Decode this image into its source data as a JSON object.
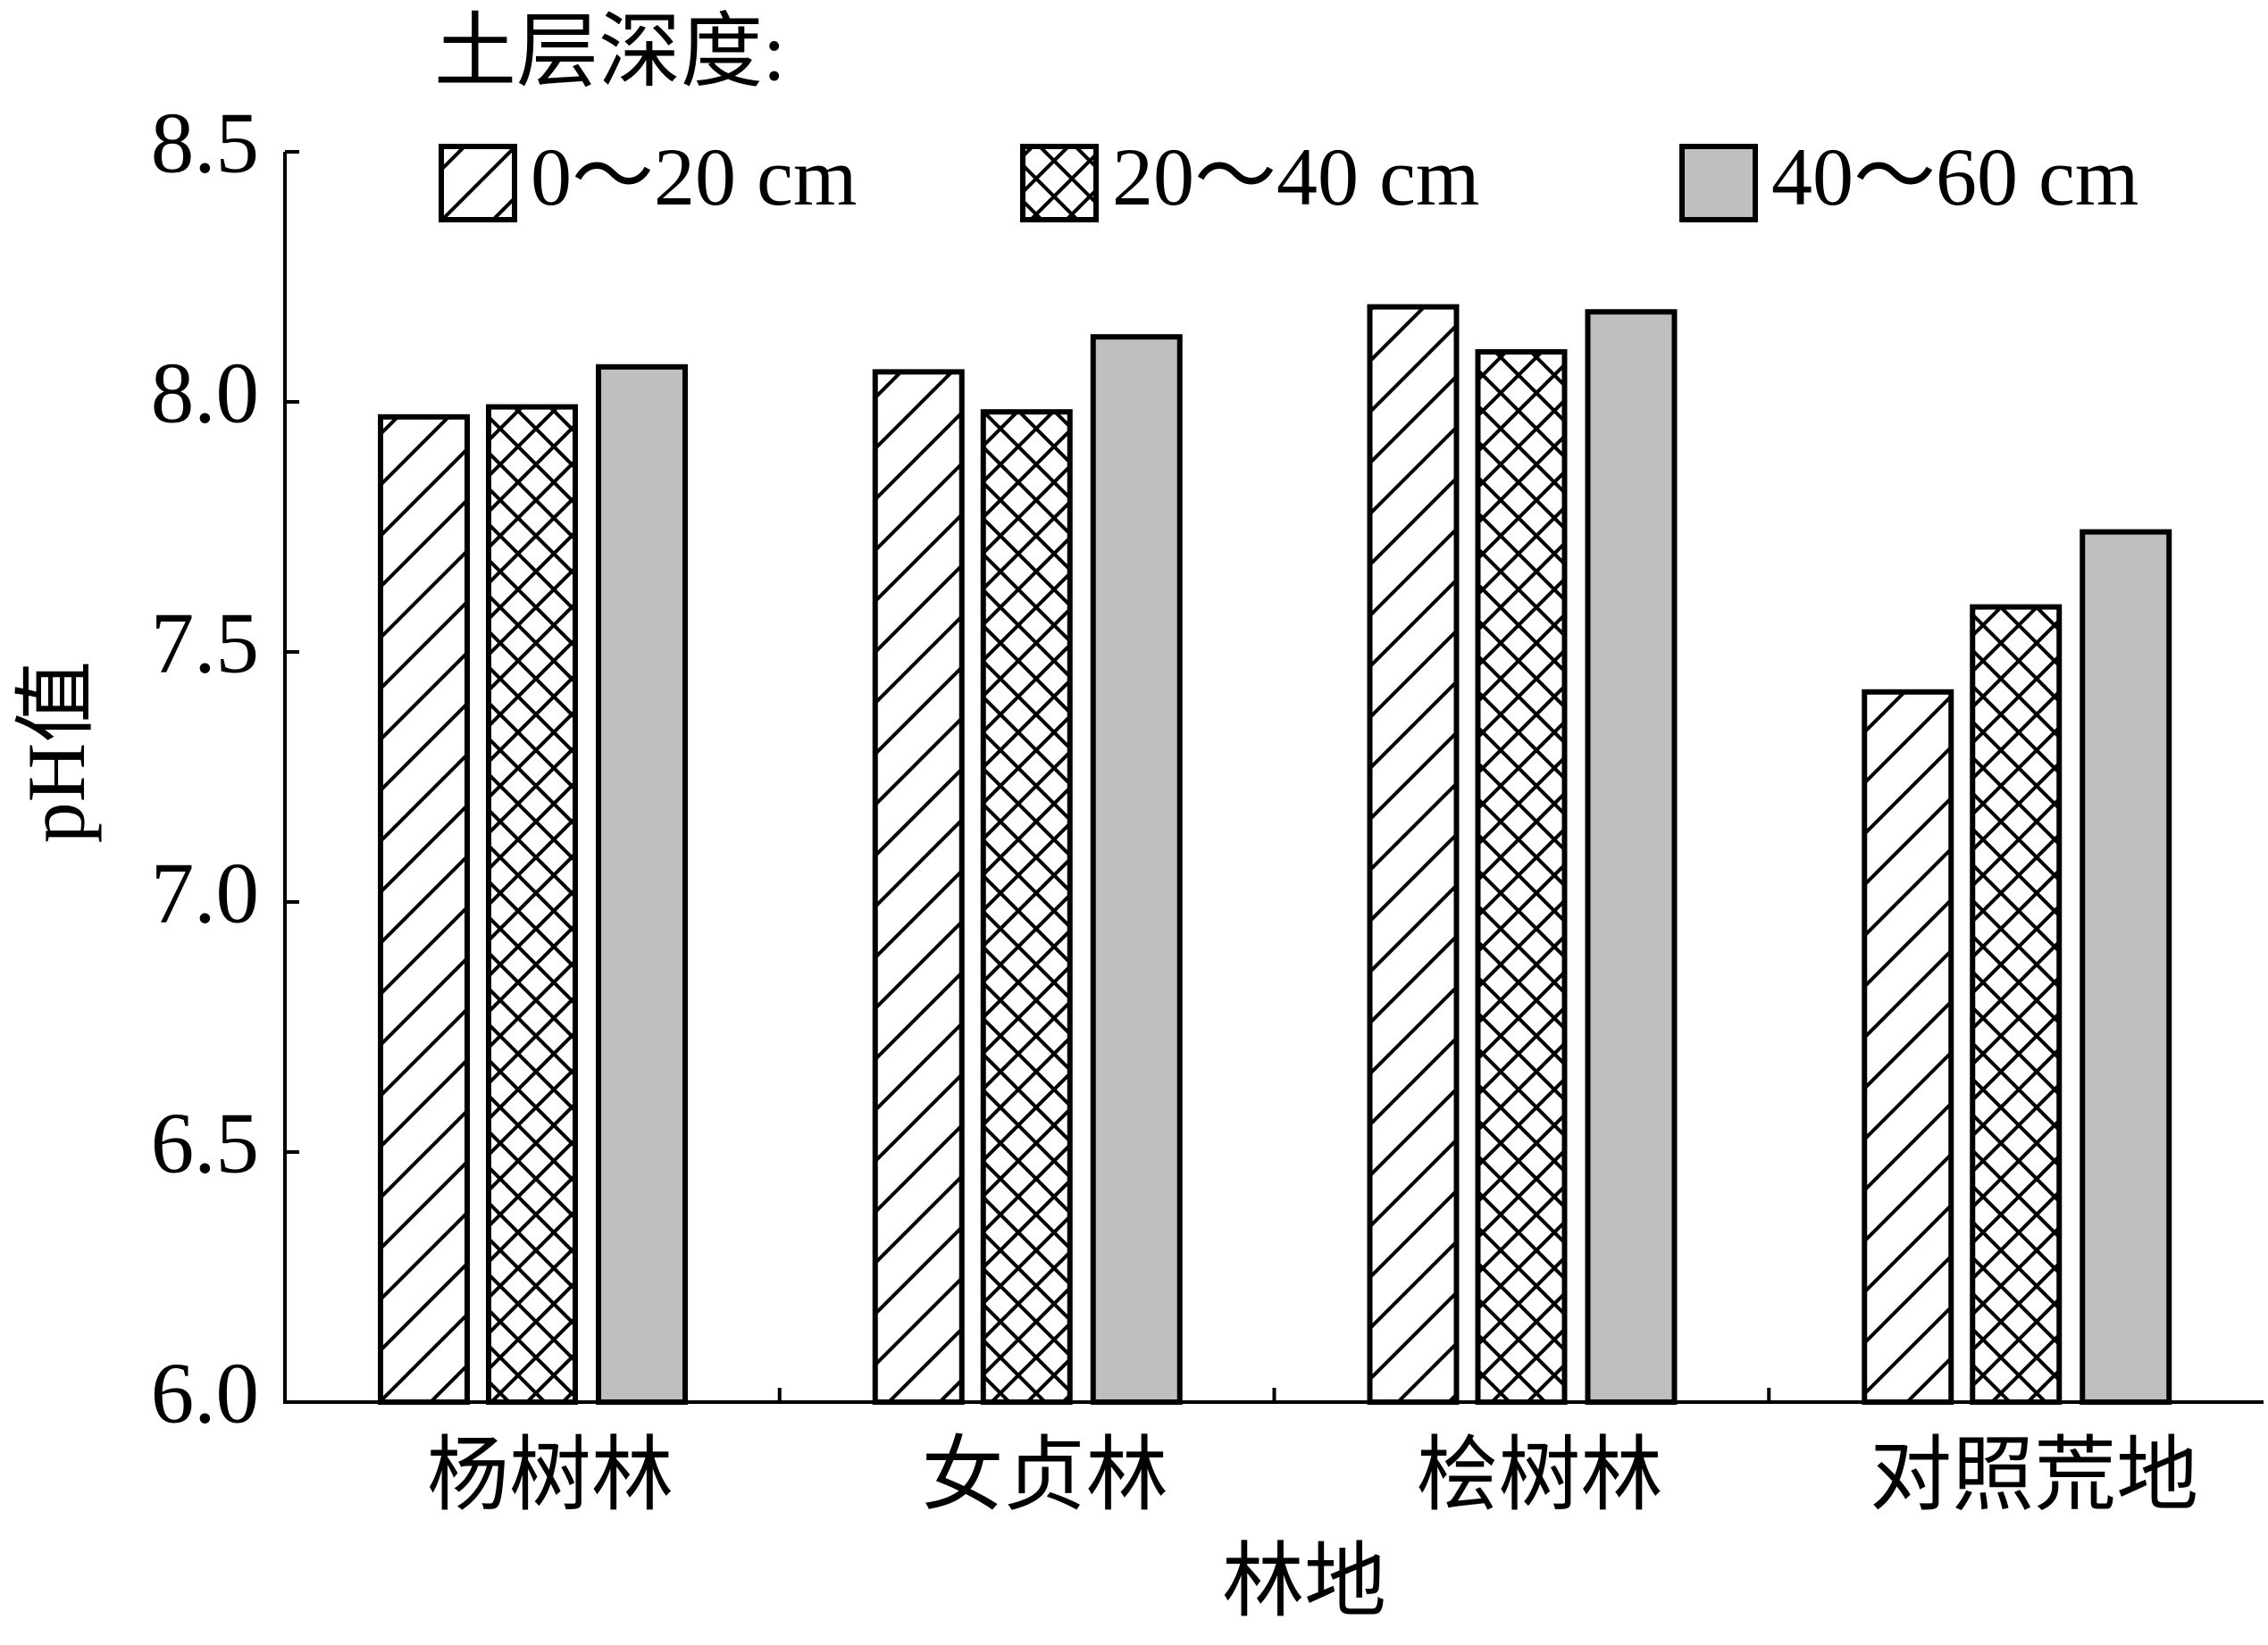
{
  "chart_data": {
    "type": "bar",
    "legend_title": "土层深度:",
    "x_label": "林地",
    "y_label": "pH值",
    "categories": [
      "杨树林",
      "女贞林",
      "桧树林",
      "对照荒地"
    ],
    "series": [
      {
        "name": "0～20 cm",
        "color": "#ffffff",
        "pattern": "diagonal",
        "values": [
          7.97,
          8.06,
          8.19,
          7.42
        ]
      },
      {
        "name": "20～40 cm",
        "color": "#ffffff",
        "pattern": "cross",
        "values": [
          7.99,
          7.98,
          8.1,
          7.59
        ]
      },
      {
        "name": "40～60 cm",
        "color": "#bfbfbf",
        "pattern": "none",
        "values": [
          8.07,
          8.13,
          8.18,
          7.74
        ]
      }
    ],
    "ylim": [
      6.0,
      8.5
    ],
    "yticks": [
      {
        "value": 6.0,
        "label": "6.0"
      },
      6.5,
      {
        "value": 7.0,
        "label": "7.0"
      },
      7.5,
      {
        "value": 8.0,
        "label": "8.0"
      },
      8.5
    ],
    "grid": false
  }
}
